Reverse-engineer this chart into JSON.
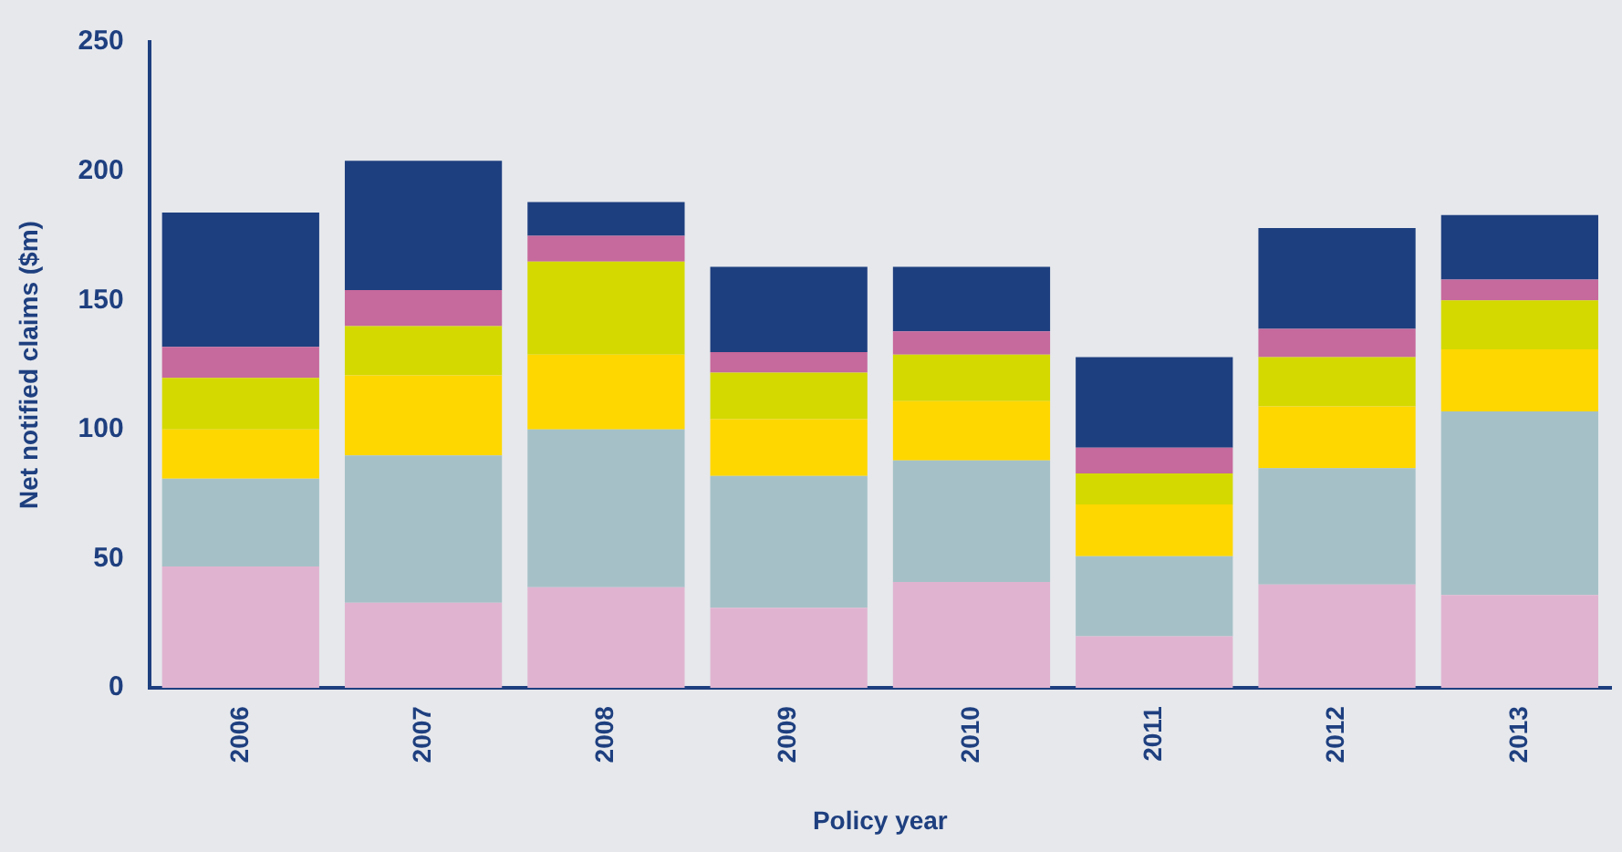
{
  "chart_data": {
    "type": "bar",
    "stacked": true,
    "xlabel": "Policy year",
    "ylabel": "Net notified claims ($m)",
    "categories": [
      "2006",
      "2007",
      "2008",
      "2009",
      "2010",
      "2011",
      "2012",
      "2013"
    ],
    "series": [
      {
        "color": "#e0b4d0",
        "values": [
          47,
          33,
          39,
          31,
          41,
          20,
          40,
          36
        ]
      },
      {
        "color": "#a5c1c7",
        "values": [
          34,
          57,
          61,
          51,
          47,
          31,
          45,
          71
        ]
      },
      {
        "color": "#ffd700",
        "values": [
          19,
          31,
          29,
          22,
          23,
          20,
          24,
          24
        ]
      },
      {
        "color": "#d4d900",
        "values": [
          20,
          19,
          36,
          18,
          18,
          12,
          19,
          19
        ]
      },
      {
        "color": "#c6699c",
        "values": [
          12,
          14,
          10,
          8,
          9,
          10,
          11,
          8
        ]
      },
      {
        "color": "#1e3f7f",
        "values": [
          52,
          50,
          13,
          33,
          25,
          35,
          39,
          25
        ]
      }
    ],
    "ylim": [
      0,
      250
    ],
    "yticks": [
      0,
      50,
      100,
      150,
      200,
      250
    ],
    "grid": false,
    "legend": false
  }
}
